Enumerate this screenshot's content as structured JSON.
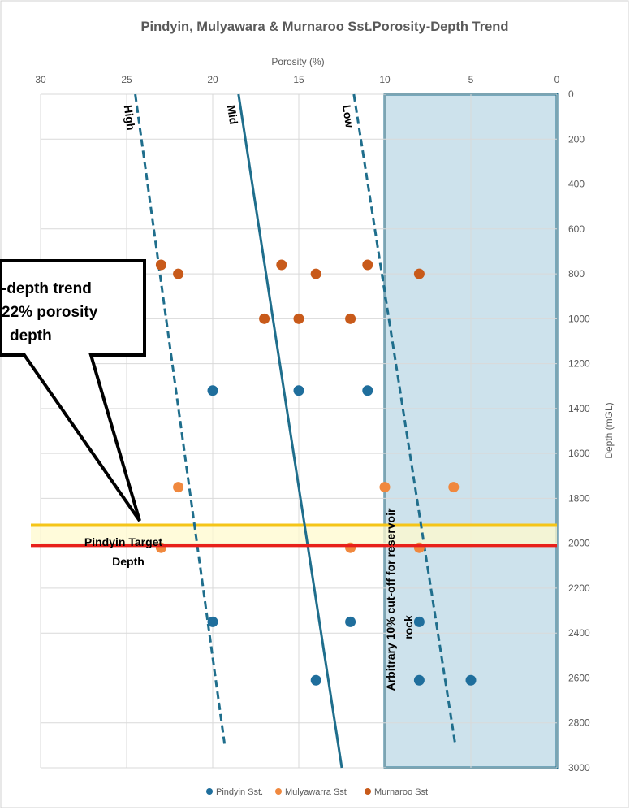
{
  "chart_data": {
    "type": "scatter",
    "title": "Pindyin, Mulyawara & Murnaroo Sst.Porosity-Depth Trend",
    "xlabel": "Porosity (%)",
    "ylabel": "Depth (mGL)",
    "x_reversed": true,
    "y_reversed": true,
    "xlim": [
      0,
      30
    ],
    "ylim": [
      0,
      3000
    ],
    "x_ticks": [
      30,
      25,
      20,
      15,
      10,
      5,
      0
    ],
    "y_ticks": [
      0,
      200,
      400,
      600,
      800,
      1000,
      1200,
      1400,
      1600,
      1800,
      2000,
      2200,
      2400,
      2600,
      2800,
      3000
    ],
    "grid": true,
    "legend_position": "bottom",
    "series": [
      {
        "name": "Pindyin Sst.",
        "color": "#1f6e9c",
        "points": [
          [
            20,
            1320
          ],
          [
            15,
            1320
          ],
          [
            11,
            1320
          ],
          [
            20,
            2350
          ],
          [
            12,
            2350
          ],
          [
            8,
            2350
          ],
          [
            14,
            2610
          ],
          [
            8,
            2610
          ],
          [
            5,
            2610
          ]
        ]
      },
      {
        "name": "Mulyawarra Sst",
        "color": "#f0883e",
        "points": [
          [
            22,
            1750
          ],
          [
            10,
            1750
          ],
          [
            6,
            1750
          ],
          [
            23,
            2020
          ],
          [
            12,
            2020
          ],
          [
            8,
            2020
          ]
        ]
      },
      {
        "name": "Murnaroo Sst",
        "color": "#c85a1a",
        "points": [
          [
            23,
            760
          ],
          [
            16,
            760
          ],
          [
            11,
            760
          ],
          [
            22,
            800
          ],
          [
            14,
            800
          ],
          [
            8,
            800
          ],
          [
            17,
            1000
          ],
          [
            15,
            1000
          ],
          [
            12,
            1000
          ]
        ]
      }
    ],
    "trend_lines": [
      {
        "label": "High",
        "style": "dashed",
        "color": "#1f6e8c",
        "from": [
          24.5,
          0
        ],
        "to": [
          19.3,
          2900
        ]
      },
      {
        "label": "Mid",
        "style": "solid",
        "color": "#1f6e8c",
        "from": [
          18.5,
          0
        ],
        "to": [
          12.5,
          3000
        ]
      },
      {
        "label": "Low",
        "style": "dashed",
        "color": "#1f6e8c",
        "from": [
          11.8,
          0
        ],
        "to": [
          5.9,
          2900
        ]
      }
    ],
    "cutoff_region": {
      "x_from": 10,
      "x_to": 0,
      "y_from": 0,
      "y_to": 3000,
      "fill": "#cde2ec",
      "border": "#1f6e8c",
      "label": "Arbitrary 10% cut-off for reservoir rock"
    },
    "target_band": {
      "y_from": 1920,
      "y_to": 2010,
      "fill": "#fffacd",
      "top_line": "#f5c518",
      "bottom_line": "#e8201a",
      "label_line1": "Pindyin Target",
      "label_line2": "Depth"
    },
    "callout": {
      "line1": "-depth trend",
      "line2": "22% porosity",
      "line3": "depth"
    }
  }
}
